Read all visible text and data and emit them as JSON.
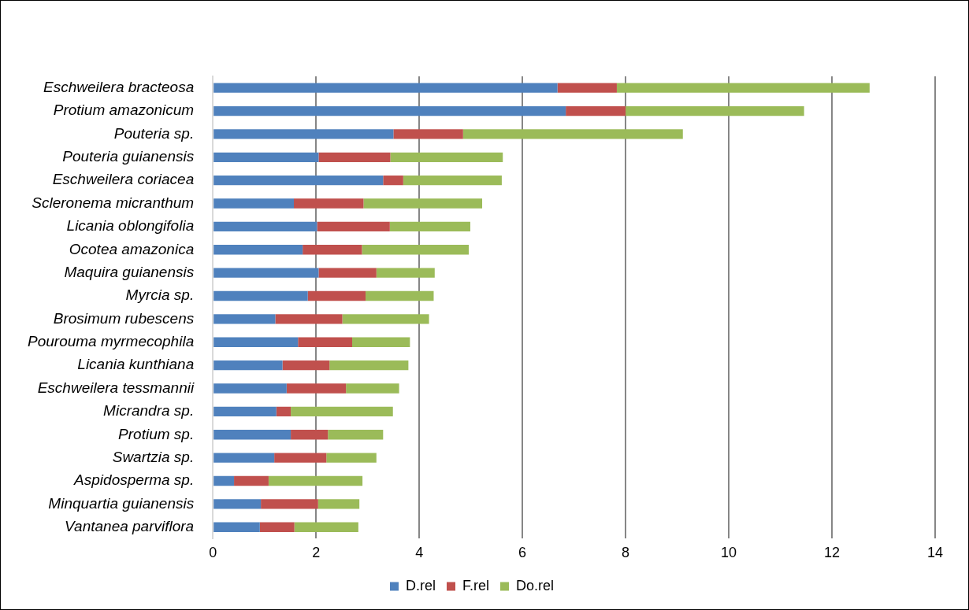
{
  "chart_data": {
    "type": "bar",
    "orientation": "horizontal",
    "stacked": true,
    "categories": [
      "Eschweilera bracteosa",
      "Protium amazonicum",
      "Pouteria sp.",
      "Pouteria guianensis",
      "Eschweilera coriacea",
      "Scleronema micranthum",
      "Licania oblongifolia",
      "Ocotea amazonica",
      "Maquira guianensis",
      "Myrcia sp.",
      "Brosimum rubescens",
      "Pourouma myrmecophila",
      "Licania kunthiana",
      "Eschweilera tessmannii",
      "Micrandra sp.",
      "Protium sp.",
      "Swartzia sp.",
      "Aspidosperma sp.",
      "Minquartia guianensis",
      "Vantanea parviflora"
    ],
    "series": [
      {
        "name": "D.rel",
        "color": "#4f81bd",
        "values": [
          6.68,
          6.84,
          3.5,
          2.05,
          3.3,
          1.57,
          2.02,
          1.74,
          2.05,
          1.84,
          1.21,
          1.65,
          1.35,
          1.43,
          1.23,
          1.51,
          1.19,
          0.41,
          0.93,
          0.91
        ]
      },
      {
        "name": "F.rel",
        "color": "#c0504d",
        "values": [
          1.15,
          1.16,
          1.35,
          1.39,
          0.39,
          1.35,
          1.41,
          1.15,
          1.12,
          1.12,
          1.3,
          1.05,
          0.91,
          1.15,
          0.28,
          0.72,
          1.01,
          0.67,
          1.11,
          0.67
        ]
      },
      {
        "name": "Do.rel",
        "color": "#9bbb59",
        "values": [
          4.9,
          3.46,
          4.26,
          2.18,
          1.91,
          2.3,
          1.56,
          2.07,
          1.13,
          1.32,
          1.68,
          1.12,
          1.53,
          1.03,
          1.98,
          1.07,
          0.97,
          1.82,
          0.8,
          1.24
        ]
      }
    ],
    "xlim": [
      0,
      14
    ],
    "xticks": [
      0,
      2,
      4,
      6,
      8,
      10,
      12,
      14
    ],
    "grid": "x",
    "legend": "bottom"
  }
}
